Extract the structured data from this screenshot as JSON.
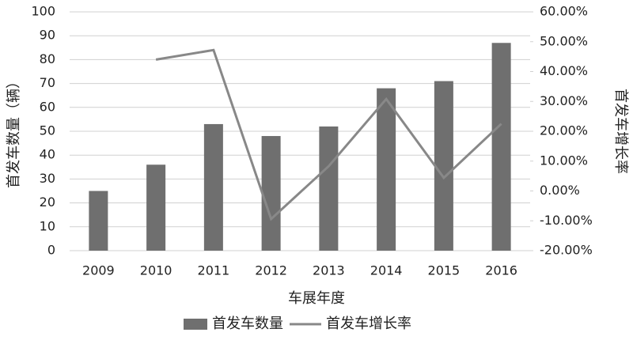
{
  "chart_data": {
    "type": "bar",
    "x_label": "车展年度",
    "y_label": "首发车数量（辆）",
    "y2_label": "首发车增长率",
    "categories": [
      "2009",
      "2010",
      "2011",
      "2012",
      "2013",
      "2014",
      "2015",
      "2016"
    ],
    "series": [
      {
        "name": "首发车数量",
        "type": "bar",
        "color": "#6f6f6f",
        "values": [
          25,
          36,
          53,
          48,
          52,
          68,
          71,
          87
        ]
      },
      {
        "name": "首发车增长率",
        "type": "line",
        "axis": "y2",
        "color": "#888888",
        "values": [
          null,
          44,
          47.2,
          -9.4,
          8.3,
          30.8,
          4.4,
          22.5
        ]
      }
    ],
    "ylim": [
      0,
      100
    ],
    "yticks": [
      0,
      10,
      20,
      30,
      40,
      50,
      60,
      70,
      80,
      90,
      100
    ],
    "y2lim": [
      -20,
      60
    ],
    "y2ticks": [
      {
        "value": -20,
        "label": "-20.00%"
      },
      {
        "value": -10,
        "label": "-10.00%"
      },
      {
        "value": 0,
        "label": "0.00%"
      },
      {
        "value": 10,
        "label": "10.00%"
      },
      {
        "value": 20,
        "label": "20.00%"
      },
      {
        "value": 30,
        "label": "30.00%"
      },
      {
        "value": 40,
        "label": "40.00%"
      },
      {
        "value": 50,
        "label": "50.00%"
      },
      {
        "value": 60,
        "label": "60.00%"
      }
    ],
    "grid": true,
    "legend": "bottom"
  }
}
